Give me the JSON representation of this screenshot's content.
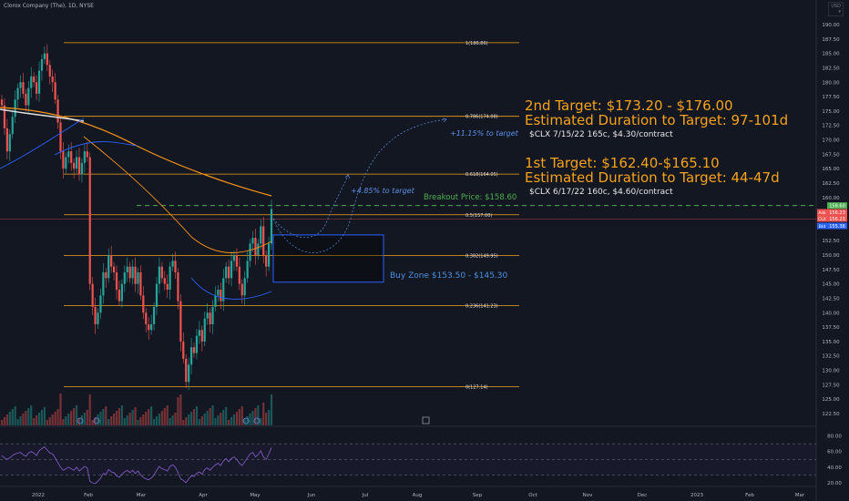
{
  "header": {
    "title": "Clorox Company (The), 1D, NYSE"
  },
  "currency_badge": {
    "line1": "USD",
    "line2": "▾"
  },
  "annotations": {
    "t2_line1": "2nd Target: $173.20 - $176.00",
    "t2_line2": "Estimated Duration to Target: 97-101d",
    "t2_option": "$CLX 7/15/22 165c, $4.30/contract",
    "t1_line1": "1st Target: $162.40-$165.10",
    "t1_line2": "Estimated Duration to Target: 44-47d",
    "t1_option": "$CLX 6/17/22 160c, $4.60/contract",
    "breakout": "Breakout Price: $158.60",
    "buy_zone": "Buy Zone $153.50 - $145.30",
    "target_pct2": "+11.15% to target",
    "target_pct1": "+4.85% to target"
  },
  "colors": {
    "background": "#131722",
    "up": "#26a69a",
    "down": "#ef5350",
    "fib": "#f7a21b",
    "ma_orange": "#f7931a",
    "ma_blue": "#2962ff",
    "ma_white": "#e0e0e0",
    "buy_zone": "#2962ff",
    "breakout": "#4caf50",
    "rsi": "#7e57c2"
  },
  "chart_data": [
    {
      "type": "candlestick",
      "title": "Clorox Company (The), 1D, NYSE",
      "ylim": [
        120,
        190
      ],
      "y_ticks": [
        "190.00",
        "187.50",
        "185.00",
        "182.50",
        "180.00",
        "177.50",
        "175.00",
        "172.50",
        "170.00",
        "167.50",
        "165.00",
        "162.50",
        "160.00",
        "157.50",
        "155.00",
        "152.50",
        "150.00",
        "147.50",
        "145.00",
        "142.50",
        "140.00",
        "137.50",
        "135.00",
        "132.50",
        "130.00",
        "127.50",
        "125.00",
        "122.50"
      ],
      "x_ticks": [
        "2022",
        "Feb",
        "Mar",
        "Apr",
        "May",
        "Jun",
        "Jul",
        "Aug",
        "Sep",
        "Oct",
        "Nov",
        "Dec",
        "2023",
        "Feb",
        "Mar"
      ],
      "fib_levels": [
        {
          "label": "1(186.86)",
          "value": 186.86
        },
        {
          "label": "0.786(174.08)",
          "value": 174.08
        },
        {
          "label": "0.618(164.05)",
          "value": 164.05
        },
        {
          "label": "0.5(157.00)",
          "value": 157.0
        },
        {
          "label": "0.382(149.95)",
          "value": 149.95
        },
        {
          "label": "0.236(141.23)",
          "value": 141.23
        },
        {
          "label": "0(127.14)",
          "value": 127.14
        }
      ],
      "breakout_price": 158.6,
      "buy_zone": [
        145.3,
        153.5
      ],
      "price_labels": [
        {
          "tag": "",
          "value": "158.60",
          "color": "#4caf50"
        },
        {
          "tag": "Ask",
          "value": "156.23",
          "color": "#ef5350"
        },
        {
          "tag": "CLX",
          "value": "156.23",
          "color": "#ef5350"
        },
        {
          "tag": "Bid",
          "value": "155.36",
          "color": "#2962ff"
        }
      ],
      "closes": [
        176,
        172,
        168,
        171,
        174,
        177,
        179,
        180,
        178,
        176,
        179,
        181,
        180,
        178,
        182,
        184,
        185,
        183,
        181,
        180,
        177,
        173,
        168,
        165,
        167,
        168,
        166,
        165,
        167,
        164,
        166,
        168,
        167,
        145,
        141,
        138,
        140,
        143,
        147,
        146,
        150,
        148,
        147,
        144,
        142,
        145,
        147,
        148,
        146,
        148,
        145,
        147,
        143,
        140,
        138,
        137,
        138,
        141,
        145,
        148,
        146,
        145,
        144,
        148,
        149,
        147,
        142,
        135,
        132,
        128,
        131,
        134,
        133,
        136,
        137,
        135,
        139,
        140,
        138,
        141,
        143,
        144,
        142,
        146,
        148,
        146,
        149,
        150,
        148,
        145,
        143,
        146,
        149,
        152,
        153,
        150,
        152,
        155,
        150,
        148,
        152,
        158
      ]
    },
    {
      "type": "line",
      "title": "",
      "ylim": [
        20,
        90
      ],
      "y_ticks": [
        "80.00",
        "60.00",
        "40.00",
        "20.00"
      ],
      "series": [
        {
          "values": [
            55,
            52,
            50,
            52,
            55,
            57,
            58,
            59,
            56,
            54,
            58,
            60,
            58,
            55,
            61,
            64,
            66,
            62,
            58,
            57,
            52,
            46,
            40,
            36,
            38,
            40,
            38,
            36,
            40,
            35,
            38,
            41,
            39,
            22,
            20,
            19,
            22,
            26,
            32,
            31,
            37,
            34,
            33,
            29,
            27,
            31,
            34,
            36,
            33,
            36,
            32,
            35,
            30,
            27,
            25,
            24,
            26,
            30,
            36,
            41,
            38,
            37,
            35,
            41,
            43,
            40,
            33,
            25,
            23,
            20,
            25,
            29,
            28,
            32,
            34,
            31,
            37,
            39,
            36,
            40,
            43,
            45,
            42,
            48,
            51,
            47,
            51,
            53,
            50,
            45,
            42,
            47,
            52,
            57,
            59,
            53,
            56,
            61,
            53,
            50,
            57,
            65
          ]
        }
      ]
    }
  ]
}
